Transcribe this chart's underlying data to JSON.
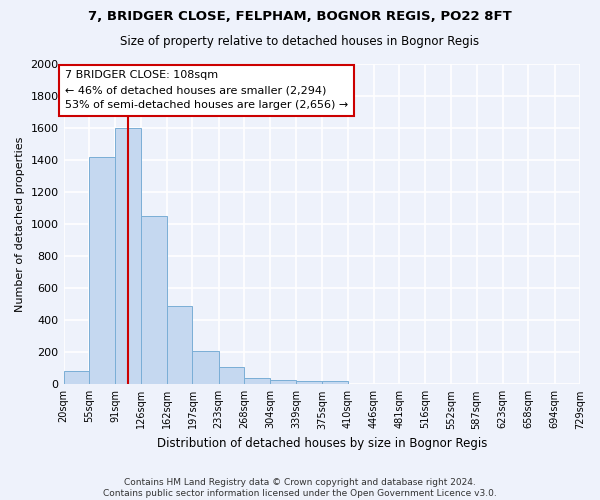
{
  "title1": "7, BRIDGER CLOSE, FELPHAM, BOGNOR REGIS, PO22 8FT",
  "title2": "Size of property relative to detached houses in Bognor Regis",
  "xlabel": "Distribution of detached houses by size in Bognor Regis",
  "ylabel": "Number of detached properties",
  "bin_edges": [
    20,
    55,
    91,
    126,
    162,
    197,
    233,
    268,
    304,
    339,
    375,
    410,
    446,
    481,
    516,
    552,
    587,
    623,
    658,
    694,
    729
  ],
  "bar_heights": [
    80,
    1420,
    1600,
    1050,
    490,
    205,
    105,
    40,
    28,
    22,
    18,
    0,
    0,
    0,
    0,
    0,
    0,
    0,
    0,
    0
  ],
  "bar_color": "#c5d8f0",
  "bar_edge_color": "#7aaed6",
  "property_size": 108,
  "red_line_color": "#cc0000",
  "annotation_text": "7 BRIDGER CLOSE: 108sqm\n← 46% of detached houses are smaller (2,294)\n53% of semi-detached houses are larger (2,656) →",
  "annotation_box_color": "#ffffff",
  "annotation_box_edge": "#cc0000",
  "ylim": [
    0,
    2000
  ],
  "yticks": [
    0,
    200,
    400,
    600,
    800,
    1000,
    1200,
    1400,
    1600,
    1800,
    2000
  ],
  "footnote1": "Contains HM Land Registry data © Crown copyright and database right 2024.",
  "footnote2": "Contains public sector information licensed under the Open Government Licence v3.0.",
  "bg_color": "#eef2fb",
  "grid_color": "#ffffff"
}
